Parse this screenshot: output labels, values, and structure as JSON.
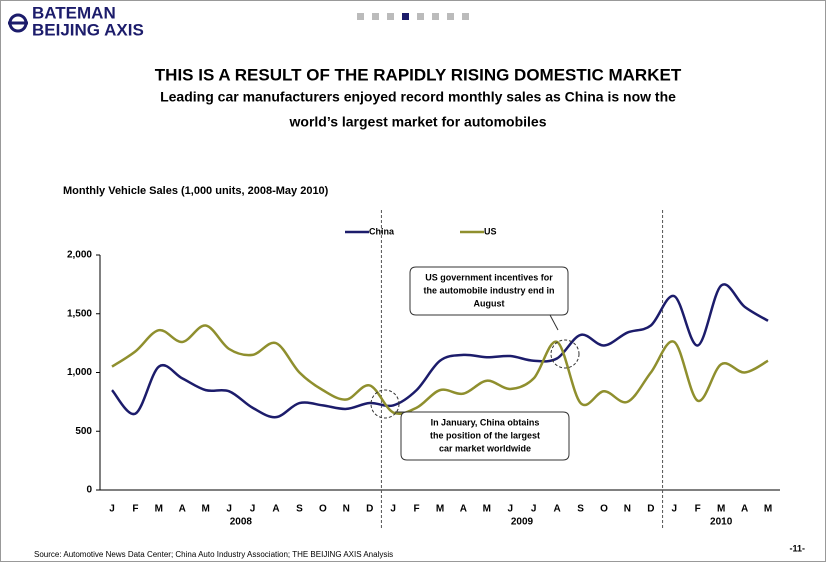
{
  "header": {
    "logo_top": "BATEMAN",
    "logo_bottom": "BEIJING AXIS"
  },
  "title": "THIS IS A RESULT OF THE RAPIDLY RISING DOMESTIC MARKET",
  "subtitle": [
    "Leading car manufacturers enjoyed record monthly sales as China is now the",
    "world’s largest market for automobiles"
  ],
  "chart_data": {
    "type": "line",
    "title": "Monthly Vehicle Sales (1,000 units, 2008-May 2010)",
    "categories": [
      "J",
      "F",
      "M",
      "A",
      "M",
      "J",
      "J",
      "A",
      "S",
      "O",
      "N",
      "D",
      "J",
      "F",
      "M",
      "A",
      "M",
      "J",
      "J",
      "A",
      "S",
      "O",
      "N",
      "D",
      "J",
      "F",
      "M",
      "A",
      "M"
    ],
    "years": [
      "2008",
      "2009",
      "2010"
    ],
    "series": [
      {
        "name": "China",
        "color": "#1c1c6b",
        "values": [
          850,
          650,
          1050,
          950,
          850,
          840,
          700,
          620,
          740,
          720,
          690,
          740,
          720,
          850,
          1100,
          1150,
          1130,
          1140,
          1100,
          1120,
          1320,
          1230,
          1340,
          1400,
          1650,
          1230,
          1740,
          1560,
          1440
        ]
      },
      {
        "name": "US",
        "color": "#8f8f2e",
        "values": [
          1050,
          1180,
          1360,
          1260,
          1400,
          1200,
          1150,
          1250,
          1000,
          850,
          770,
          890,
          660,
          700,
          850,
          820,
          930,
          860,
          950,
          1260,
          740,
          840,
          750,
          1000,
          1260,
          760,
          1070,
          1000,
          1100
        ]
      }
    ],
    "ylim": [
      0,
      2000
    ],
    "yticks": [
      0,
      500,
      {
        "value": 1000,
        "label": "1,000"
      },
      {
        "value": 1500,
        "label": "1,500"
      },
      {
        "value": 2000,
        "label": "2,000"
      }
    ],
    "legend": "top",
    "annotations": [
      [
        "US government incentives for",
        "the automobile industry end in",
        "August"
      ],
      [
        "In January, China obtains",
        "the position of the largest",
        "car market worldwide"
      ]
    ]
  },
  "source": "Source: Automotive News Data Center; China Auto Industry Association; THE BEIJING AXIS Analysis",
  "page": "-11-"
}
